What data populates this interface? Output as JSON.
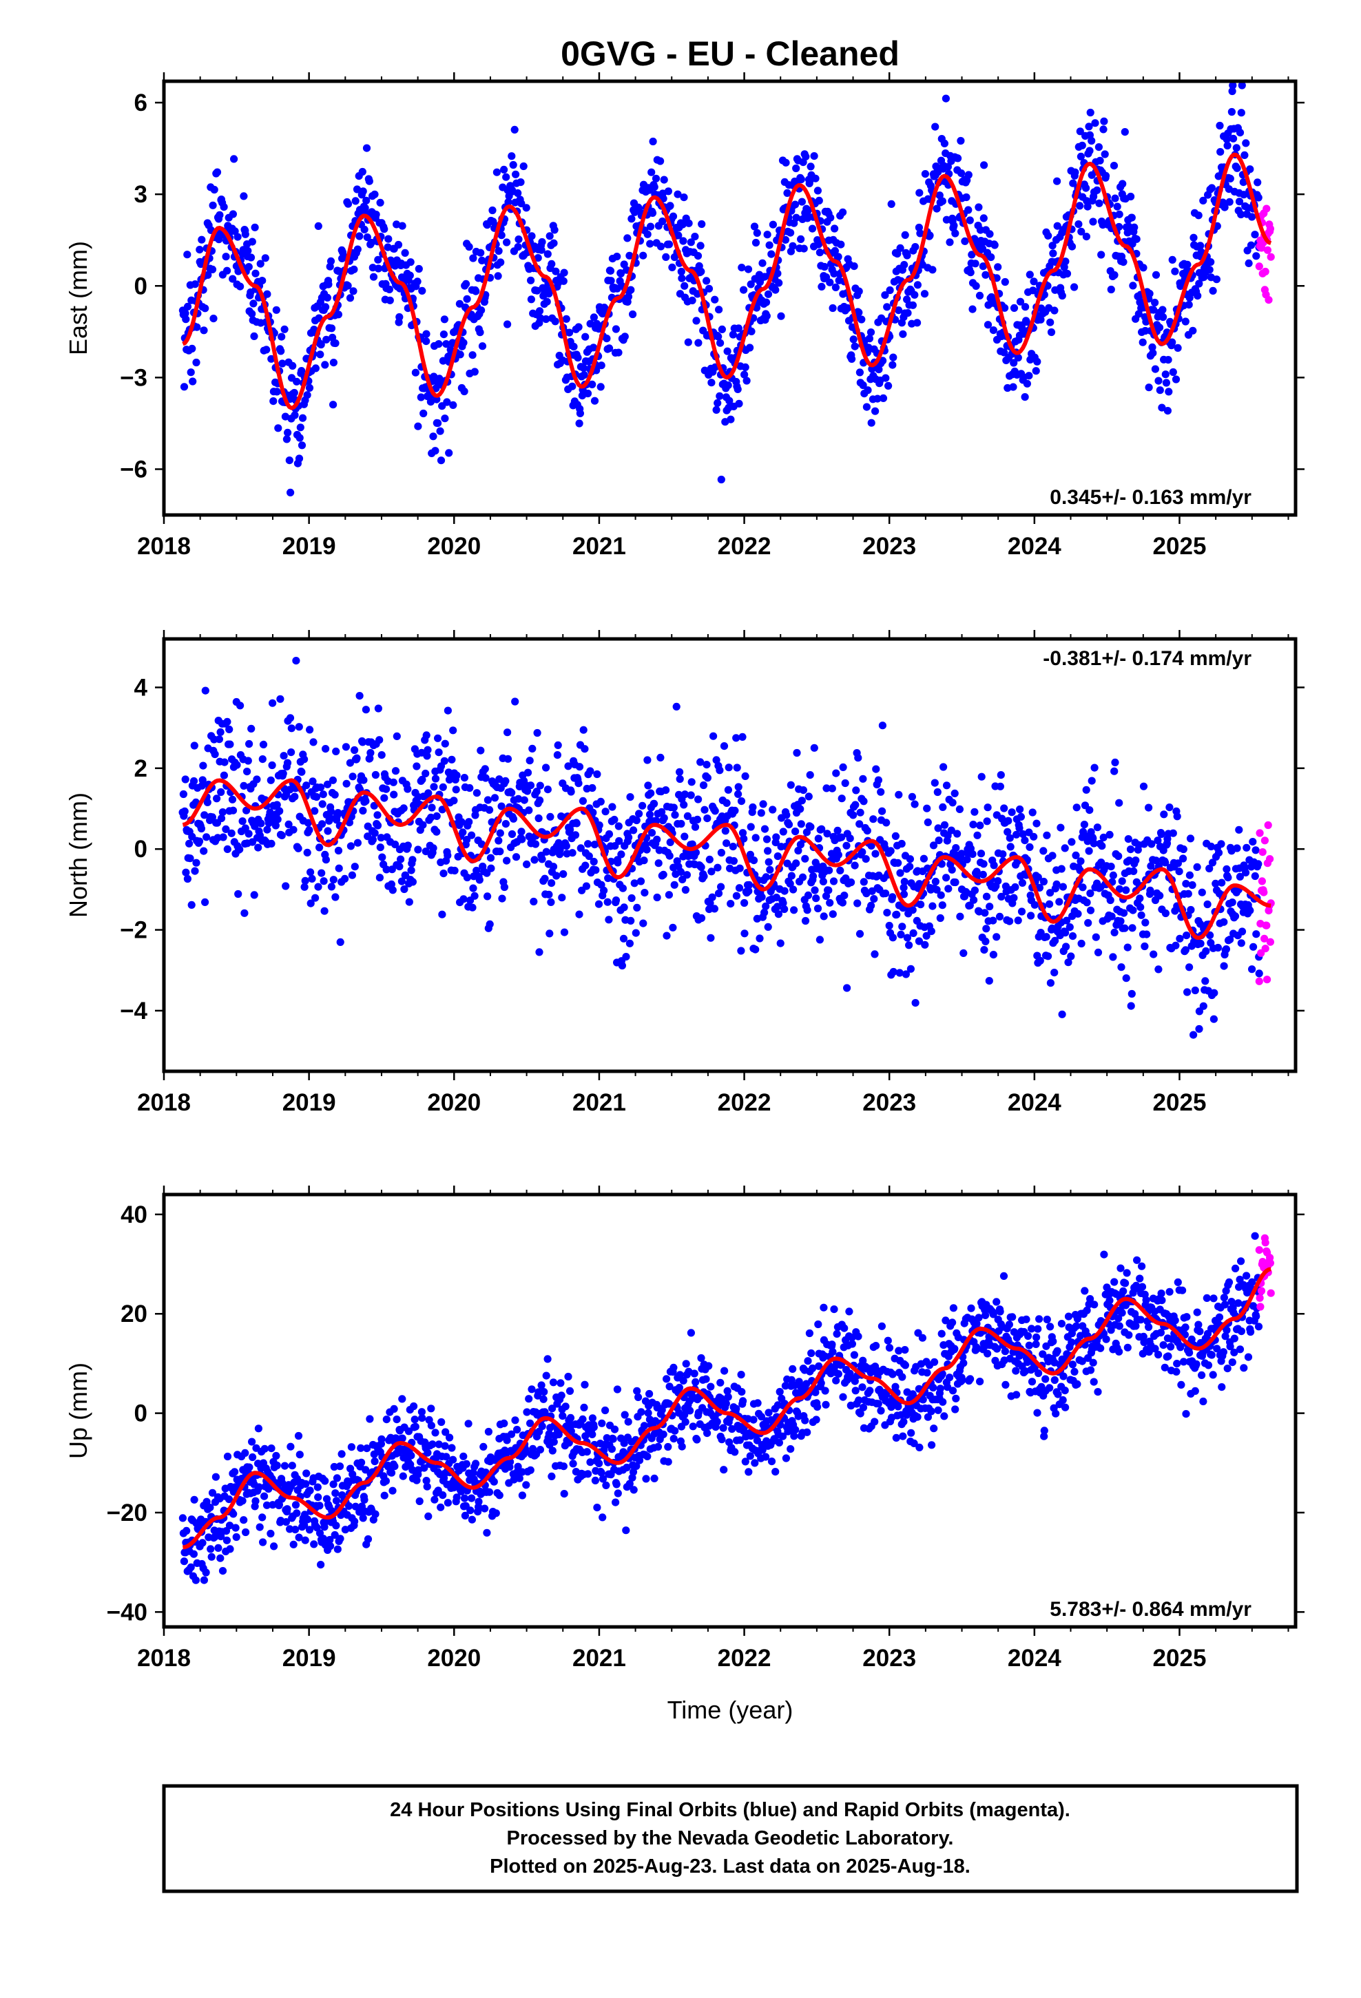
{
  "page": {
    "title": "0GVG  - EU - Cleaned",
    "x_axis_label": "Time (year)",
    "footer_lines": [
      "24 Hour Positions Using Final Orbits (blue) and Rapid Orbits (magenta).",
      "Processed by the Nevada Geodetic Laboratory.",
      "Plotted on 2025-Aug-23. Last data on 2025-Aug-18."
    ]
  },
  "colors": {
    "final_orbits": "#0000ff",
    "rapid_orbits": "#ff00ff",
    "model_fit": "#ff0000",
    "frame": "#000000"
  },
  "chart_data": [
    {
      "type": "scatter",
      "component": "East",
      "ylabel": "East (mm)",
      "xlim": [
        2018,
        2025.8
      ],
      "ylim": [
        -7.5,
        6.7
      ],
      "x_ticks": [
        2018,
        2019,
        2020,
        2021,
        2022,
        2023,
        2024,
        2025
      ],
      "x_tick_labels": [
        "2018",
        "2019",
        "2020",
        "2021",
        "2022",
        "2023",
        "2024",
        "2025"
      ],
      "y_ticks": [
        -6,
        -3,
        0,
        3,
        6
      ],
      "y_tick_labels": [
        "−6",
        "−3",
        "0",
        "3",
        "6"
      ],
      "rate_label": "0.345+/- 0.163 mm/yr",
      "rate_position": "bottom-right",
      "grid": false,
      "data_start": 2018.13,
      "data_end": 2025.55,
      "rapid_start": 2025.55,
      "data_end_rapid": 2025.63,
      "scatter_sd": 1.0,
      "model_x": [
        2018.13,
        2018.38,
        2018.63,
        2018.88,
        2019.13,
        2019.38,
        2019.63,
        2019.88,
        2020.13,
        2020.38,
        2020.63,
        2020.88,
        2021.13,
        2021.38,
        2021.63,
        2021.88,
        2022.13,
        2022.38,
        2022.63,
        2022.88,
        2023.13,
        2023.38,
        2023.63,
        2023.88,
        2024.13,
        2024.38,
        2024.63,
        2024.88,
        2025.13,
        2025.38,
        2025.63
      ],
      "model_y": [
        -1.9,
        1.9,
        0.0,
        -4.0,
        -1.0,
        2.3,
        0.1,
        -3.6,
        -0.7,
        2.6,
        0.3,
        -3.3,
        -0.4,
        2.9,
        0.5,
        -3.0,
        -0.1,
        3.3,
        0.8,
        -2.6,
        0.2,
        3.6,
        1.0,
        -2.2,
        0.5,
        4.0,
        1.3,
        -1.9,
        0.7,
        4.3,
        1.4
      ],
      "series": [
        {
          "name": "Final Orbits (blue)",
          "color": "#0000ff"
        },
        {
          "name": "Rapid Orbits (magenta)",
          "color": "#ff00ff"
        }
      ]
    },
    {
      "type": "scatter",
      "component": "North",
      "ylabel": "North (mm)",
      "xlim": [
        2018,
        2025.8
      ],
      "ylim": [
        -5.5,
        5.2
      ],
      "x_ticks": [
        2018,
        2019,
        2020,
        2021,
        2022,
        2023,
        2024,
        2025
      ],
      "x_tick_labels": [
        "2018",
        "2019",
        "2020",
        "2021",
        "2022",
        "2023",
        "2024",
        "2025"
      ],
      "y_ticks": [
        -4,
        -2,
        0,
        2,
        4
      ],
      "y_tick_labels": [
        "−4",
        "−2",
        "0",
        "2",
        "4"
      ],
      "rate_label": "-0.381+/- 0.174 mm/yr",
      "rate_position": "top-right",
      "grid": false,
      "data_start": 2018.13,
      "data_end": 2025.55,
      "rapid_start": 2025.55,
      "data_end_rapid": 2025.63,
      "scatter_sd": 1.05,
      "model_x": [
        2018.13,
        2018.38,
        2018.63,
        2018.88,
        2019.13,
        2019.38,
        2019.63,
        2019.88,
        2020.13,
        2020.38,
        2020.63,
        2020.88,
        2021.13,
        2021.38,
        2021.63,
        2021.88,
        2022.13,
        2022.38,
        2022.63,
        2022.88,
        2023.13,
        2023.38,
        2023.63,
        2023.88,
        2024.13,
        2024.38,
        2024.63,
        2024.88,
        2025.13,
        2025.38,
        2025.63
      ],
      "model_y": [
        0.6,
        1.7,
        1.0,
        1.7,
        0.1,
        1.4,
        0.6,
        1.3,
        -0.3,
        1.0,
        0.3,
        1.0,
        -0.7,
        0.6,
        0.0,
        0.6,
        -1.0,
        0.3,
        -0.4,
        0.2,
        -1.4,
        -0.2,
        -0.8,
        -0.2,
        -1.8,
        -0.5,
        -1.2,
        -0.5,
        -2.2,
        -0.9,
        -1.4
      ],
      "series": [
        {
          "name": "Final Orbits (blue)",
          "color": "#0000ff"
        },
        {
          "name": "Rapid Orbits (magenta)",
          "color": "#ff00ff"
        }
      ]
    },
    {
      "type": "scatter",
      "component": "Up",
      "ylabel": "Up (mm)",
      "xlim": [
        2018,
        2025.8
      ],
      "ylim": [
        -43,
        44
      ],
      "x_ticks": [
        2018,
        2019,
        2020,
        2021,
        2022,
        2023,
        2024,
        2025
      ],
      "x_tick_labels": [
        "2018",
        "2019",
        "2020",
        "2021",
        "2022",
        "2023",
        "2024",
        "2025"
      ],
      "y_ticks": [
        -40,
        -20,
        0,
        20,
        40
      ],
      "y_tick_labels": [
        "−40",
        "−20",
        "0",
        "20",
        "40"
      ],
      "rate_label": "5.783+/- 0.864 mm/yr",
      "rate_position": "bottom-right",
      "grid": false,
      "data_start": 2018.13,
      "data_end": 2025.55,
      "rapid_start": 2025.55,
      "data_end_rapid": 2025.63,
      "scatter_sd": 4.8,
      "model_x": [
        2018.13,
        2018.38,
        2018.63,
        2018.88,
        2019.13,
        2019.38,
        2019.63,
        2019.88,
        2020.13,
        2020.38,
        2020.63,
        2020.88,
        2021.13,
        2021.38,
        2021.63,
        2021.88,
        2022.13,
        2022.38,
        2022.63,
        2022.88,
        2023.13,
        2023.38,
        2023.63,
        2023.88,
        2024.13,
        2024.38,
        2024.63,
        2024.88,
        2025.13,
        2025.38,
        2025.63
      ],
      "model_y": [
        -27,
        -21,
        -12,
        -17,
        -21,
        -14,
        -6,
        -10,
        -15,
        -9,
        -1,
        -6,
        -10,
        -3,
        5,
        0,
        -4,
        3,
        11,
        7,
        2,
        9,
        17,
        13,
        8,
        15,
        23,
        18,
        13,
        19,
        29
      ],
      "series": [
        {
          "name": "Final Orbits (blue)",
          "color": "#0000ff"
        },
        {
          "name": "Rapid Orbits (magenta)",
          "color": "#ff00ff"
        }
      ]
    }
  ]
}
